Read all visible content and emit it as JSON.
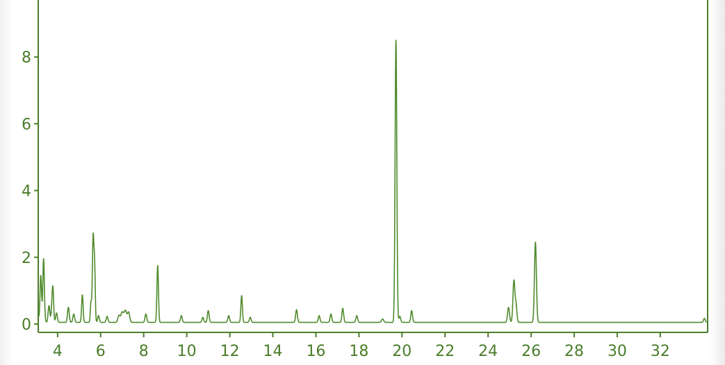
{
  "chart_data": {
    "type": "line",
    "title": "",
    "xlabel": "",
    "ylabel": "",
    "xlim": [
      3.1,
      34.2
    ],
    "ylim": [
      -0.25,
      9.5
    ],
    "x_ticks": [
      4,
      6,
      8,
      10,
      12,
      14,
      16,
      18,
      20,
      22,
      24,
      26,
      28,
      30,
      32
    ],
    "y_ticks": [
      0,
      2,
      4,
      6,
      8
    ],
    "grid": false,
    "legend": "none",
    "colors": {
      "line": "#4f8a2c",
      "axis": "#4a7d2a",
      "label": "#4a7d2a"
    },
    "baseline": 0.05,
    "peaks": [
      {
        "x": 3.22,
        "height": 1.3,
        "width": 0.035
      },
      {
        "x": 3.35,
        "height": 1.85,
        "width": 0.035
      },
      {
        "x": 3.6,
        "height": 0.5,
        "width": 0.04
      },
      {
        "x": 3.72,
        "height": 0.3,
        "width": 0.03
      },
      {
        "x": 3.78,
        "height": 1.05,
        "width": 0.035
      },
      {
        "x": 3.95,
        "height": 0.28,
        "width": 0.04
      },
      {
        "x": 4.5,
        "height": 0.45,
        "width": 0.04
      },
      {
        "x": 4.75,
        "height": 0.25,
        "width": 0.04
      },
      {
        "x": 5.15,
        "height": 0.82,
        "width": 0.035
      },
      {
        "x": 5.55,
        "height": 0.6,
        "width": 0.03
      },
      {
        "x": 5.65,
        "height": 2.55,
        "width": 0.035
      },
      {
        "x": 5.72,
        "height": 1.6,
        "width": 0.03
      },
      {
        "x": 5.9,
        "height": 0.2,
        "width": 0.04
      },
      {
        "x": 6.3,
        "height": 0.18,
        "width": 0.04
      },
      {
        "x": 6.85,
        "height": 0.2,
        "width": 0.05
      },
      {
        "x": 7.0,
        "height": 0.3,
        "width": 0.06
      },
      {
        "x": 7.15,
        "height": 0.35,
        "width": 0.06
      },
      {
        "x": 7.3,
        "height": 0.3,
        "width": 0.05
      },
      {
        "x": 8.1,
        "height": 0.25,
        "width": 0.04
      },
      {
        "x": 8.65,
        "height": 1.7,
        "width": 0.035
      },
      {
        "x": 9.75,
        "height": 0.2,
        "width": 0.04
      },
      {
        "x": 10.75,
        "height": 0.15,
        "width": 0.04
      },
      {
        "x": 11.0,
        "height": 0.35,
        "width": 0.04
      },
      {
        "x": 11.95,
        "height": 0.2,
        "width": 0.04
      },
      {
        "x": 12.55,
        "height": 0.8,
        "width": 0.035
      },
      {
        "x": 12.95,
        "height": 0.15,
        "width": 0.04
      },
      {
        "x": 15.1,
        "height": 0.38,
        "width": 0.04
      },
      {
        "x": 16.15,
        "height": 0.2,
        "width": 0.04
      },
      {
        "x": 16.7,
        "height": 0.25,
        "width": 0.04
      },
      {
        "x": 17.25,
        "height": 0.42,
        "width": 0.04
      },
      {
        "x": 17.9,
        "height": 0.2,
        "width": 0.04
      },
      {
        "x": 19.1,
        "height": 0.1,
        "width": 0.05
      },
      {
        "x": 19.72,
        "height": 8.45,
        "width": 0.04
      },
      {
        "x": 19.9,
        "height": 0.18,
        "width": 0.04
      },
      {
        "x": 20.45,
        "height": 0.35,
        "width": 0.04
      },
      {
        "x": 24.95,
        "height": 0.45,
        "width": 0.045
      },
      {
        "x": 25.2,
        "height": 1.25,
        "width": 0.045
      },
      {
        "x": 25.3,
        "height": 0.5,
        "width": 0.04
      },
      {
        "x": 26.2,
        "height": 2.4,
        "width": 0.045
      },
      {
        "x": 34.05,
        "height": 0.12,
        "width": 0.04
      }
    ]
  }
}
